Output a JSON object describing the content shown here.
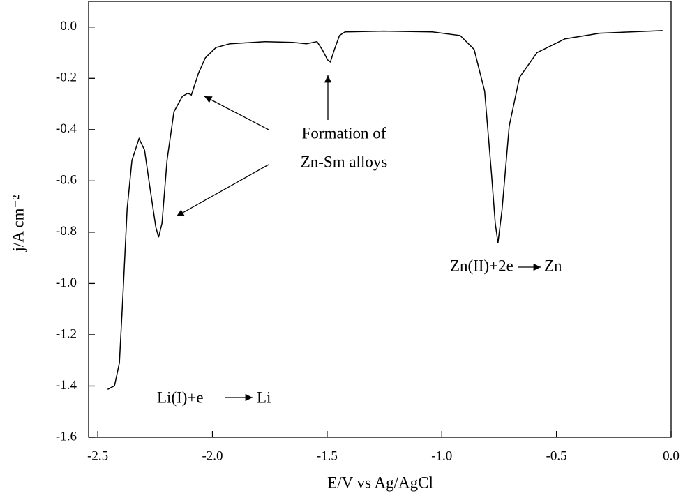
{
  "chart_data": {
    "type": "line",
    "x_label": "E/V vs Ag/AgCl",
    "y_label": "j/A cm⁻²",
    "xlim": [
      -2.54,
      0.0
    ],
    "ylim": [
      -1.6,
      0.1
    ],
    "xticks": [
      -2.5,
      {
        "value": -2,
        "label": "-2.0"
      },
      -1.5,
      {
        "value": -1,
        "label": "-1.0"
      },
      -0.5,
      {
        "value": 0,
        "label": "0.0"
      }
    ],
    "yticks": [
      {
        "value": 0,
        "label": "0.0"
      },
      -0.2,
      -0.4,
      -0.6,
      -0.8,
      {
        "value": -1,
        "label": "-1.0"
      },
      -1.2,
      -1.4,
      -1.6
    ],
    "series": [
      {
        "color": "#000000",
        "x": [
          -2.457,
          -2.427,
          -2.406,
          -2.39,
          -2.372,
          -2.351,
          -2.32,
          -2.296,
          -2.272,
          -2.247,
          -2.235,
          -2.22,
          -2.198,
          -2.168,
          -2.131,
          -2.107,
          -2.092,
          -2.061,
          -2.031,
          -1.985,
          -1.924,
          -1.772,
          -1.65,
          -1.59,
          -1.544,
          -1.522,
          -1.498,
          -1.486,
          -1.468,
          -1.446,
          -1.422,
          -1.255,
          -1.041,
          -0.92,
          -0.859,
          -0.813,
          -0.783,
          -0.767,
          -0.755,
          -0.737,
          -0.706,
          -0.661,
          -0.585,
          -0.463,
          -0.311,
          -0.037
        ],
        "values": [
          -1.413,
          -1.399,
          -1.31,
          -1.04,
          -0.71,
          -0.52,
          -0.435,
          -0.48,
          -0.63,
          -0.78,
          -0.82,
          -0.765,
          -0.52,
          -0.33,
          -0.27,
          -0.258,
          -0.265,
          -0.18,
          -0.12,
          -0.08,
          -0.065,
          -0.057,
          -0.06,
          -0.065,
          -0.057,
          -0.087,
          -0.128,
          -0.136,
          -0.087,
          -0.033,
          -0.019,
          -0.016,
          -0.019,
          -0.033,
          -0.087,
          -0.25,
          -0.576,
          -0.766,
          -0.842,
          -0.71,
          -0.386,
          -0.196,
          -0.1,
          -0.046,
          -0.024,
          -0.014
        ]
      }
    ],
    "annotations": [
      {
        "lines": [
          "Formation of",
          "Zn-Sm alloys"
        ]
      },
      {
        "lines": [
          "Zn(II)+2e",
          "Zn"
        ]
      },
      {
        "lines": [
          "Li(I)+e",
          "Li"
        ]
      }
    ]
  }
}
